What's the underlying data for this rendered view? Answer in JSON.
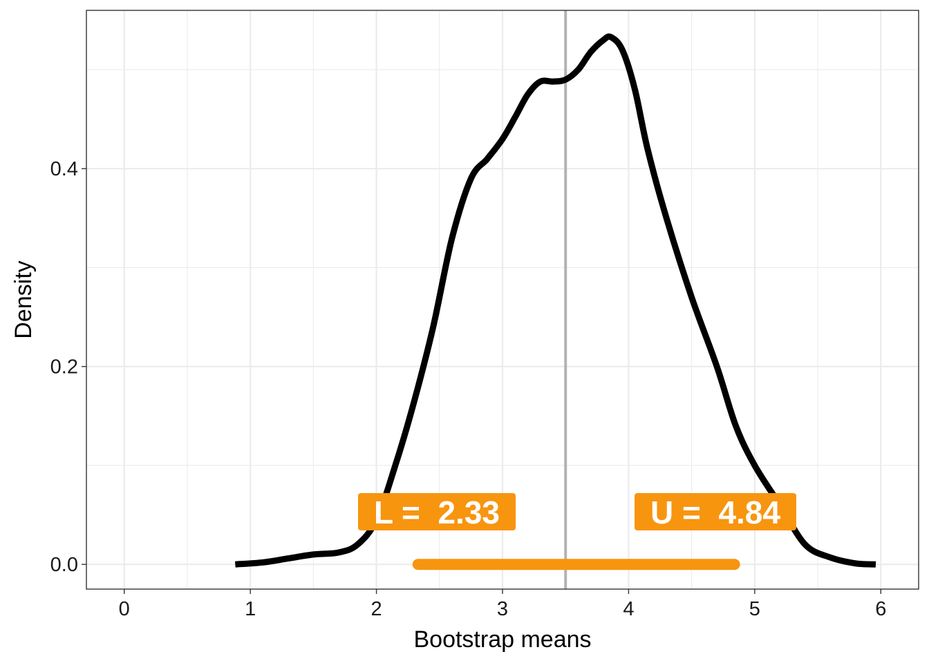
{
  "chart_data": {
    "type": "line",
    "title": "",
    "xlabel": "Bootstrap means",
    "ylabel": "Density",
    "xlim": [
      -0.3,
      6.3
    ],
    "ylim": [
      -0.025,
      0.56
    ],
    "x_ticks": [
      0,
      1,
      2,
      3,
      4,
      5,
      6
    ],
    "x_tick_labels": [
      "0",
      "1",
      "2",
      "3",
      "4",
      "5",
      "6"
    ],
    "y_ticks": [
      0.0,
      0.2,
      0.4
    ],
    "y_tick_labels": [
      "0.0",
      "0.2",
      "0.4"
    ],
    "x_minor_ticks": [
      0.5,
      1.5,
      2.5,
      3.5,
      4.5,
      5.5
    ],
    "y_minor_ticks": [
      0.1,
      0.3,
      0.5
    ],
    "grid": true,
    "series": [
      {
        "x": [
          0.88,
          1.1,
          1.3,
          1.5,
          1.7,
          1.85,
          2.0,
          2.15,
          2.3,
          2.45,
          2.6,
          2.75,
          2.88,
          3.0,
          3.1,
          3.2,
          3.3,
          3.4,
          3.5,
          3.6,
          3.7,
          3.8,
          3.86,
          3.95,
          4.05,
          4.15,
          4.3,
          4.5,
          4.7,
          4.85,
          5.0,
          5.2,
          5.4,
          5.6,
          5.8,
          5.96
        ],
        "y": [
          0.0,
          0.002,
          0.006,
          0.01,
          0.012,
          0.02,
          0.045,
          0.1,
          0.165,
          0.24,
          0.33,
          0.39,
          0.41,
          0.43,
          0.452,
          0.475,
          0.488,
          0.488,
          0.49,
          0.5,
          0.518,
          0.53,
          0.533,
          0.52,
          0.48,
          0.42,
          0.35,
          0.27,
          0.2,
          0.14,
          0.1,
          0.06,
          0.02,
          0.007,
          0.001,
          0.0
        ]
      }
    ],
    "point_estimate": 3.5,
    "interval": {
      "lower": 2.33,
      "upper": 4.84,
      "color": "#f7950f"
    },
    "colors": {
      "curve": "#000000",
      "vline": "#b3b3b3",
      "interval": "#f7950f"
    }
  },
  "labels": {
    "lower": "L =  2.33",
    "upper": "U =  4.84"
  }
}
